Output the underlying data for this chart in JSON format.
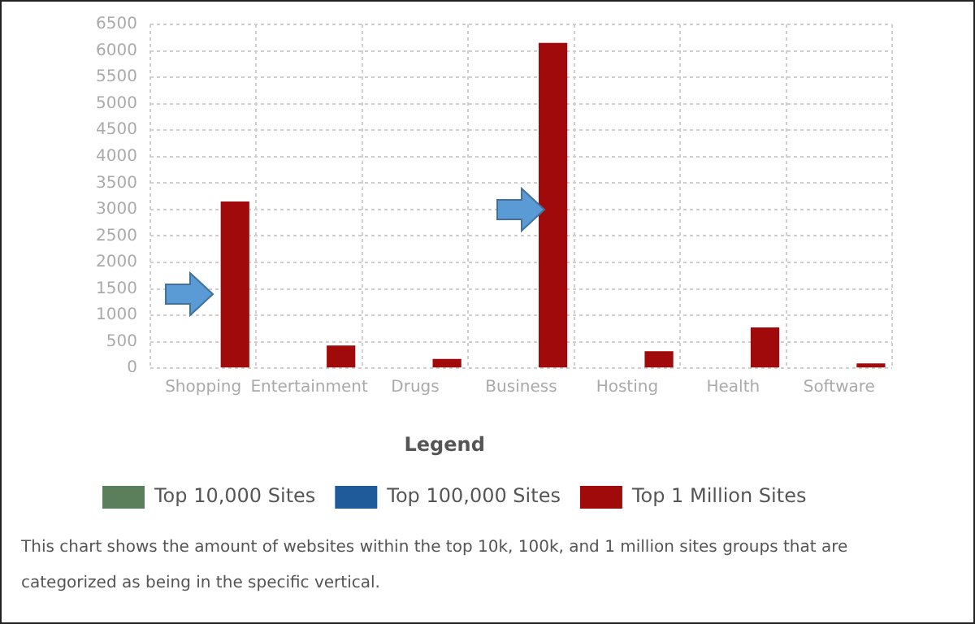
{
  "chart_data": {
    "type": "bar",
    "legend_title": "Legend",
    "categories": [
      "Shopping",
      "Entertainment",
      "Drugs",
      "Business",
      "Hosting",
      "Health",
      "Software"
    ],
    "series": [
      {
        "name": "Top 10,000 Sites",
        "color": "#5a7f5a",
        "values": [
          null,
          null,
          null,
          null,
          null,
          null,
          null
        ]
      },
      {
        "name": "Top 100,000 Sites",
        "color": "#1f5b9a",
        "values": [
          null,
          null,
          null,
          null,
          null,
          null,
          null
        ]
      },
      {
        "name": "Top 1 Million Sites",
        "color": "#a00a0a",
        "values": [
          3150,
          430,
          175,
          6150,
          320,
          770,
          90
        ]
      }
    ],
    "ylim": [
      0,
      6500
    ],
    "yticks": [
      0,
      500,
      1000,
      1500,
      2000,
      2500,
      3000,
      3500,
      4000,
      4500,
      5000,
      5500,
      6000,
      6500
    ],
    "grid": true,
    "legend": "bottom",
    "annotations": [
      "This chart shows the amount of websites within the top 10k, 100k, and 1 million sites groups that are categorized as being in the specific vertical."
    ]
  }
}
